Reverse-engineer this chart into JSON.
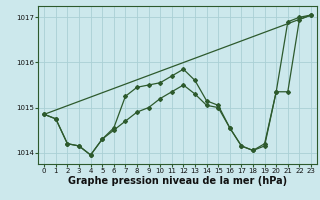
{
  "background_color": "#cce8ec",
  "grid_color": "#aad0d5",
  "line_color": "#2d5a2d",
  "xlabel": "Graphe pression niveau de la mer (hPa)",
  "xlabel_fontsize": 7.0,
  "xlim": [
    -0.5,
    23.5
  ],
  "ylim": [
    1013.75,
    1017.25
  ],
  "yticks": [
    1014,
    1015,
    1016,
    1017
  ],
  "xticks": [
    0,
    1,
    2,
    3,
    4,
    5,
    6,
    7,
    8,
    9,
    10,
    11,
    12,
    13,
    14,
    15,
    16,
    17,
    18,
    19,
    20,
    21,
    22,
    23
  ],
  "series": [
    {
      "x": [
        0,
        1,
        2,
        3,
        4,
        5,
        6,
        7,
        8,
        9,
        10,
        11,
        12,
        13,
        14,
        15,
        16,
        17,
        18,
        19,
        20,
        21,
        22,
        23
      ],
      "y": [
        1014.85,
        1014.75,
        1014.2,
        1014.15,
        1013.95,
        1014.3,
        1014.55,
        1015.25,
        1015.45,
        1015.5,
        1015.55,
        1015.7,
        1015.85,
        1015.6,
        1015.15,
        1015.05,
        1014.55,
        1014.15,
        1014.05,
        1014.15,
        1015.35,
        1016.9,
        1017.0,
        1017.05
      ]
    },
    {
      "x": [
        0,
        1,
        2,
        3,
        4,
        5,
        6,
        7,
        8,
        9,
        10,
        11,
        12,
        13,
        14,
        15,
        16,
        17,
        18,
        19,
        20,
        21,
        22,
        23
      ],
      "y": [
        1014.85,
        1014.75,
        1014.2,
        1014.15,
        1013.95,
        1014.3,
        1014.5,
        1014.7,
        1014.9,
        1015.0,
        1015.2,
        1015.35,
        1015.5,
        1015.3,
        1015.05,
        1015.0,
        1014.55,
        1014.15,
        1014.05,
        1014.2,
        1015.35,
        1015.35,
        1016.95,
        1017.05
      ]
    },
    {
      "x": [
        0,
        23
      ],
      "y": [
        1014.85,
        1017.05
      ]
    }
  ]
}
